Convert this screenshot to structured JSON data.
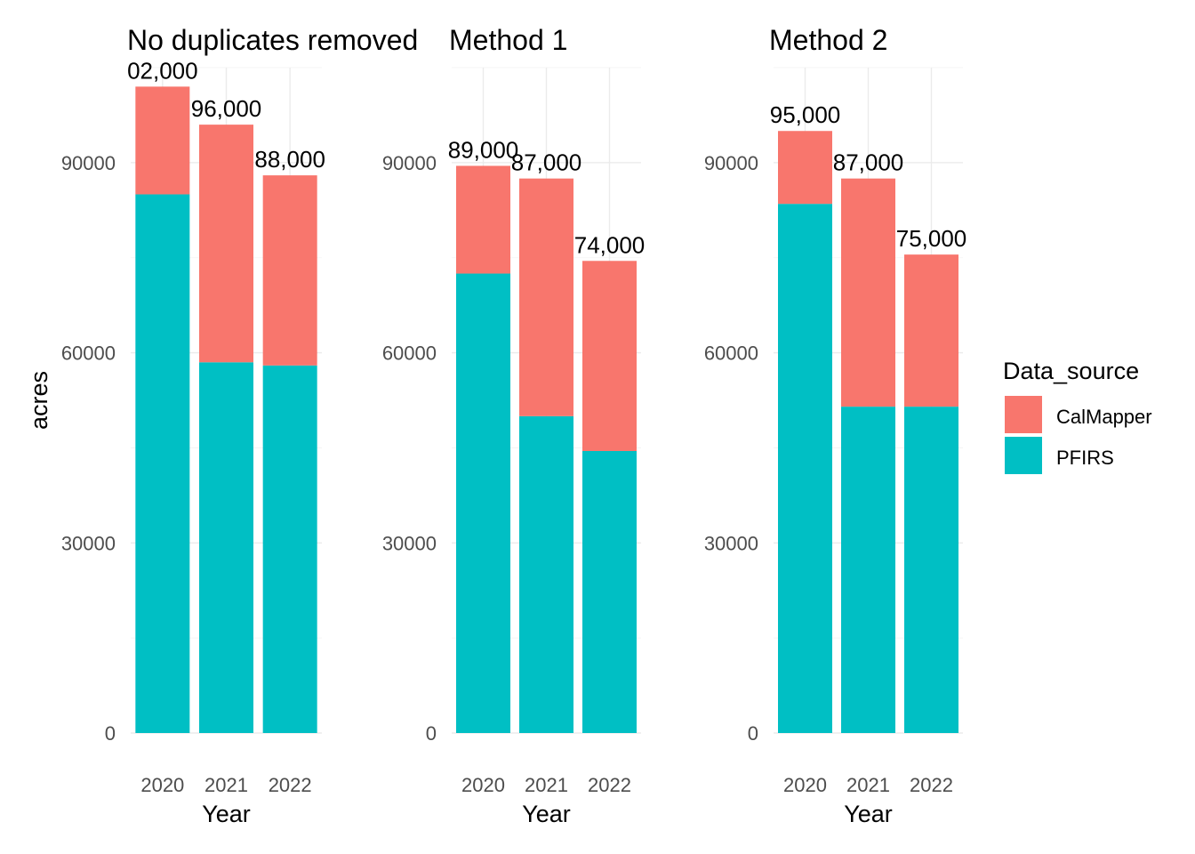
{
  "chart_data": [
    {
      "type": "bar",
      "stacked": true,
      "title": "No duplicates removed",
      "xlabel": "Year",
      "ylabel": "acres",
      "categories": [
        "2020",
        "2021",
        "2022"
      ],
      "ylim": [
        0,
        105000
      ],
      "yticks": [
        0,
        30000,
        60000,
        90000
      ],
      "grid": true,
      "series": [
        {
          "name": "PFIRS",
          "values": [
            85000,
            58500,
            58000
          ]
        },
        {
          "name": "CalMapper",
          "values": [
            17000,
            37500,
            30000
          ]
        }
      ],
      "data_labels": [
        "02,000",
        "96,000",
        "88,000"
      ]
    },
    {
      "type": "bar",
      "stacked": true,
      "title": "Method 1",
      "xlabel": "Year",
      "ylabel": "",
      "categories": [
        "2020",
        "2021",
        "2022"
      ],
      "ylim": [
        0,
        105000
      ],
      "yticks": [
        0,
        30000,
        60000,
        90000
      ],
      "grid": true,
      "series": [
        {
          "name": "PFIRS",
          "values": [
            72500,
            50000,
            44500
          ]
        },
        {
          "name": "CalMapper",
          "values": [
            17000,
            37500,
            30000
          ]
        }
      ],
      "data_labels": [
        "89,000",
        "87,000",
        "74,000"
      ]
    },
    {
      "type": "bar",
      "stacked": true,
      "title": "Method 2",
      "xlabel": "Year",
      "ylabel": "",
      "categories": [
        "2020",
        "2021",
        "2022"
      ],
      "ylim": [
        0,
        105000
      ],
      "yticks": [
        0,
        30000,
        60000,
        90000
      ],
      "grid": true,
      "series": [
        {
          "name": "PFIRS",
          "values": [
            83500,
            51500,
            51500
          ]
        },
        {
          "name": "CalMapper",
          "values": [
            11500,
            36000,
            24000
          ]
        }
      ],
      "data_labels": [
        "95,000",
        "87,000",
        "75,000"
      ]
    }
  ],
  "legend": {
    "title": "Data_source",
    "placement": "right",
    "items": [
      {
        "name": "CalMapper",
        "color": "#f8766d"
      },
      {
        "name": "PFIRS",
        "color": "#00bfc4"
      }
    ]
  },
  "colors": {
    "CalMapper": "#f8766d",
    "PFIRS": "#00bfc4"
  }
}
